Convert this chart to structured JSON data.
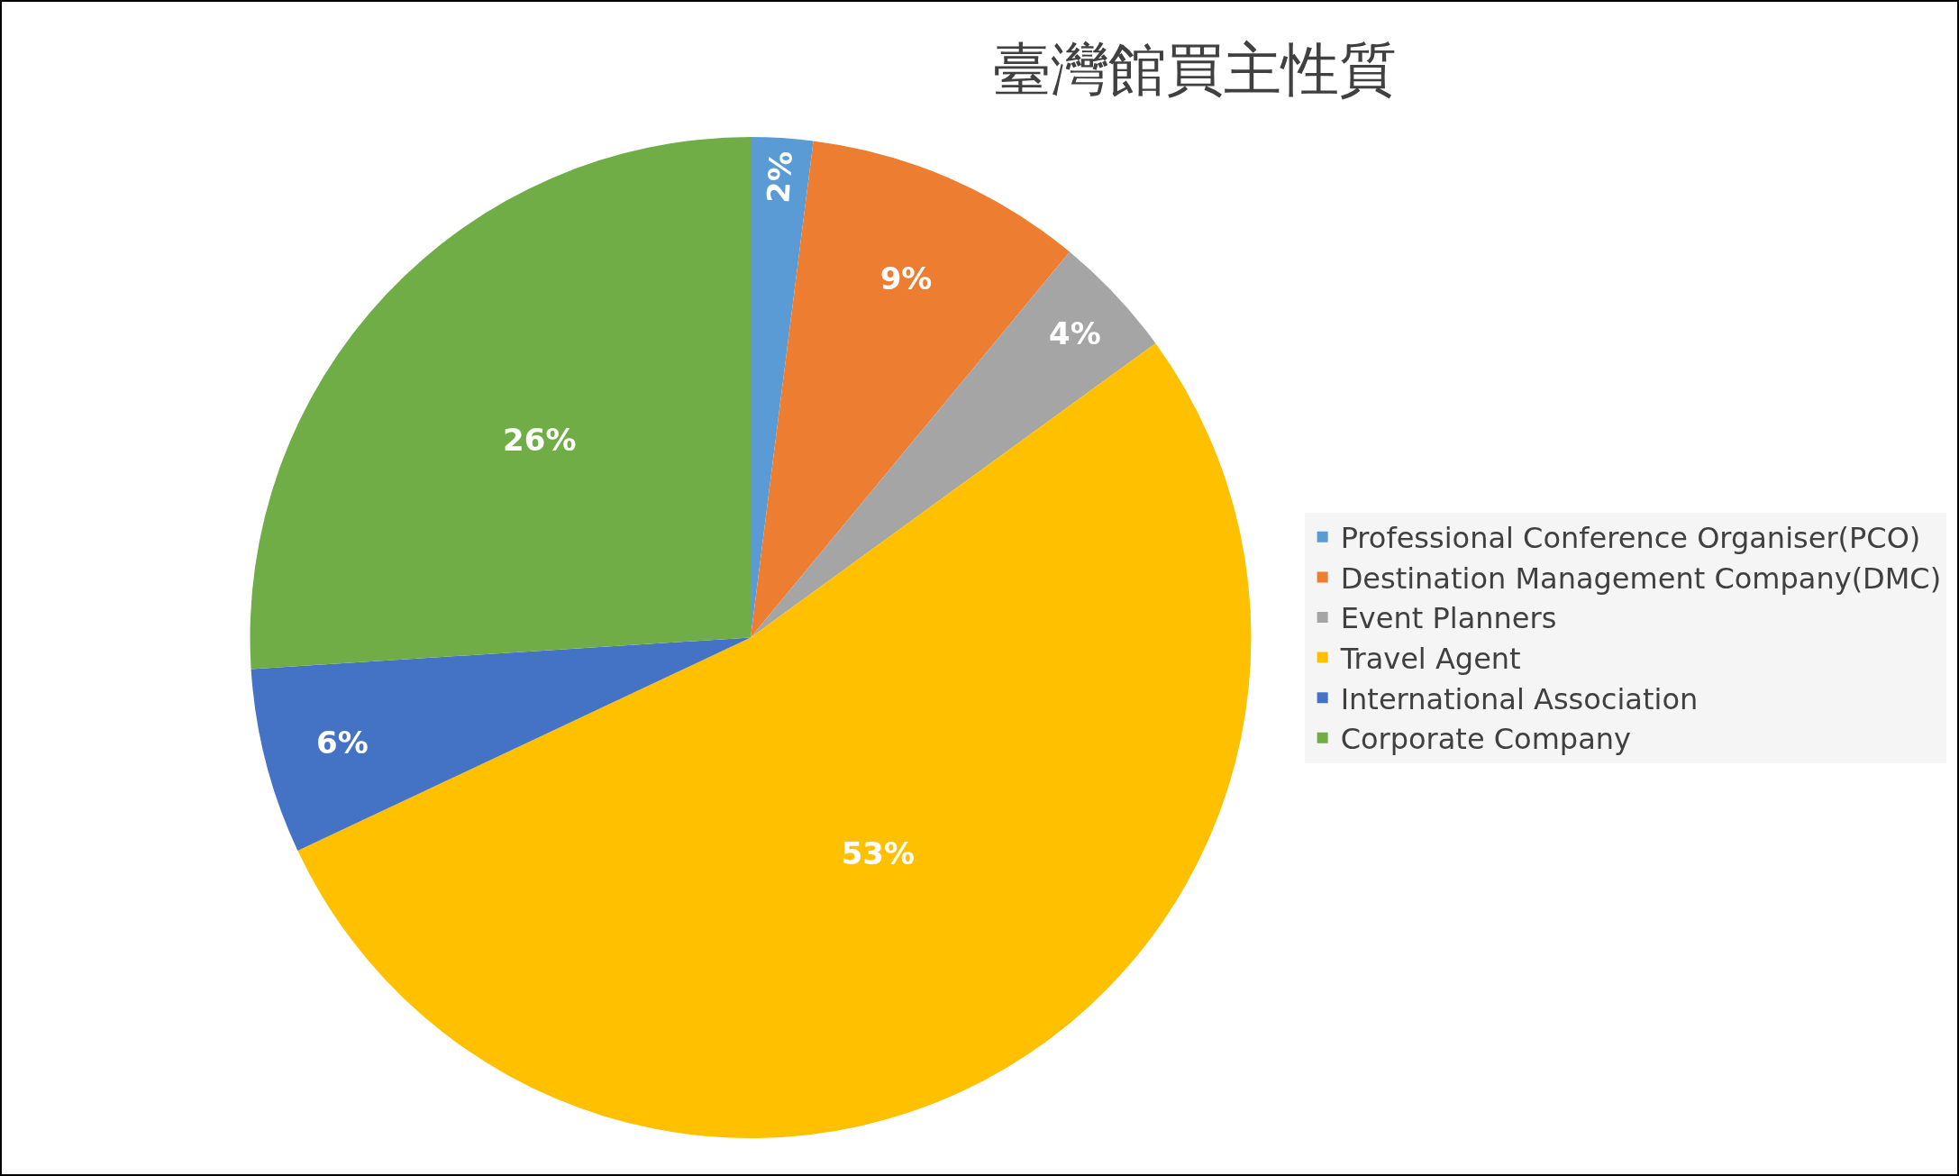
{
  "chart_data": {
    "type": "pie",
    "title": "臺灣館買主性質",
    "categories": [
      "Professional Conference Organiser(PCO)",
      "Destination Management Company(DMC)",
      "Event Planners",
      "Travel Agent",
      "International Association",
      "Corporate Company"
    ],
    "values": [
      2,
      9,
      4,
      53,
      6,
      26
    ],
    "value_labels": [
      "2%",
      "9%",
      "4%",
      "53%",
      "6%",
      "26%"
    ],
    "colors": [
      "#5b9bd5",
      "#ed7d31",
      "#a5a5a5",
      "#ffc000",
      "#4472c4",
      "#70ad47"
    ],
    "legend": "right"
  }
}
